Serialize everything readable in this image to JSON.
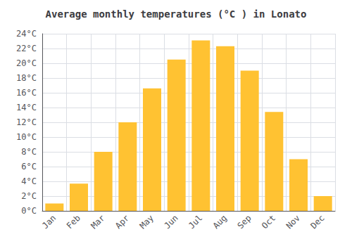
{
  "chart_data": {
    "type": "bar",
    "title": "Average monthly temperatures (°C ) in Lonato",
    "categories": [
      "Jan",
      "Feb",
      "Mar",
      "Apr",
      "May",
      "Jun",
      "Jul",
      "Aug",
      "Sep",
      "Oct",
      "Nov",
      "Dec"
    ],
    "values": [
      1.0,
      3.7,
      8.0,
      12.0,
      16.6,
      20.5,
      23.1,
      22.3,
      19.0,
      13.4,
      7.0,
      2.0
    ],
    "color": "#FFC232",
    "ylim": [
      0,
      24
    ],
    "yticks": [
      {
        "value": 0,
        "label": "0°C"
      },
      {
        "value": 2,
        "label": "2°C"
      },
      {
        "value": 4,
        "label": "4°C"
      },
      {
        "value": 6,
        "label": "6°C"
      },
      {
        "value": 8,
        "label": "8°C"
      },
      {
        "value": 10,
        "label": "10°C"
      },
      {
        "value": 12,
        "label": "12°C"
      },
      {
        "value": 14,
        "label": "14°C"
      },
      {
        "value": 16,
        "label": "16°C"
      },
      {
        "value": 18,
        "label": "18°C"
      },
      {
        "value": 20,
        "label": "20°C"
      },
      {
        "value": 22,
        "label": "22°C"
      },
      {
        "value": 24,
        "label": "24°C"
      }
    ],
    "grid": true
  }
}
